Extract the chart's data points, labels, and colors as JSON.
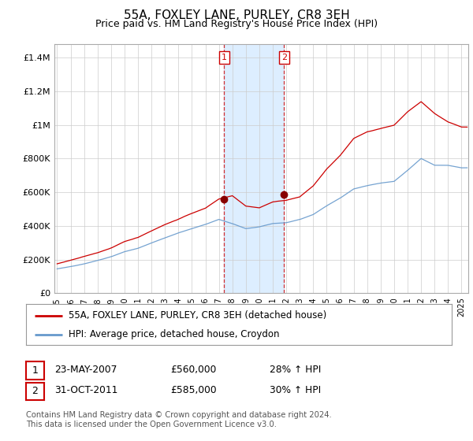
{
  "title": "55A, FOXLEY LANE, PURLEY, CR8 3EH",
  "subtitle": "Price paid vs. HM Land Registry's House Price Index (HPI)",
  "ylabel_ticks": [
    "£0",
    "£200K",
    "£400K",
    "£600K",
    "£800K",
    "£1M",
    "£1.2M",
    "£1.4M"
  ],
  "ytick_values": [
    0,
    200000,
    400000,
    600000,
    800000,
    1000000,
    1200000,
    1400000
  ],
  "ylim": [
    0,
    1480000
  ],
  "xlim_start": 1994.8,
  "xlim_end": 2025.5,
  "xtick_years": [
    1995,
    1996,
    1997,
    1998,
    1999,
    2000,
    2001,
    2002,
    2003,
    2004,
    2005,
    2006,
    2007,
    2008,
    2009,
    2010,
    2011,
    2012,
    2013,
    2014,
    2015,
    2016,
    2017,
    2018,
    2019,
    2020,
    2021,
    2022,
    2023,
    2024,
    2025
  ],
  "sale1_x": 2007.388,
  "sale1_y": 560000,
  "sale2_x": 2011.833,
  "sale2_y": 585000,
  "highlight_color": "#ddeeff",
  "red_line_color": "#cc0000",
  "blue_line_color": "#6699cc",
  "legend_label_red": "55A, FOXLEY LANE, PURLEY, CR8 3EH (detached house)",
  "legend_label_blue": "HPI: Average price, detached house, Croydon",
  "table_row1": [
    "1",
    "23-MAY-2007",
    "£560,000",
    "28% ↑ HPI"
  ],
  "table_row2": [
    "2",
    "31-OCT-2011",
    "£585,000",
    "30% ↑ HPI"
  ],
  "footnote": "Contains HM Land Registry data © Crown copyright and database right 2024.\nThis data is licensed under the Open Government Licence v3.0.",
  "background_color": "#ffffff",
  "grid_color": "#cccccc"
}
